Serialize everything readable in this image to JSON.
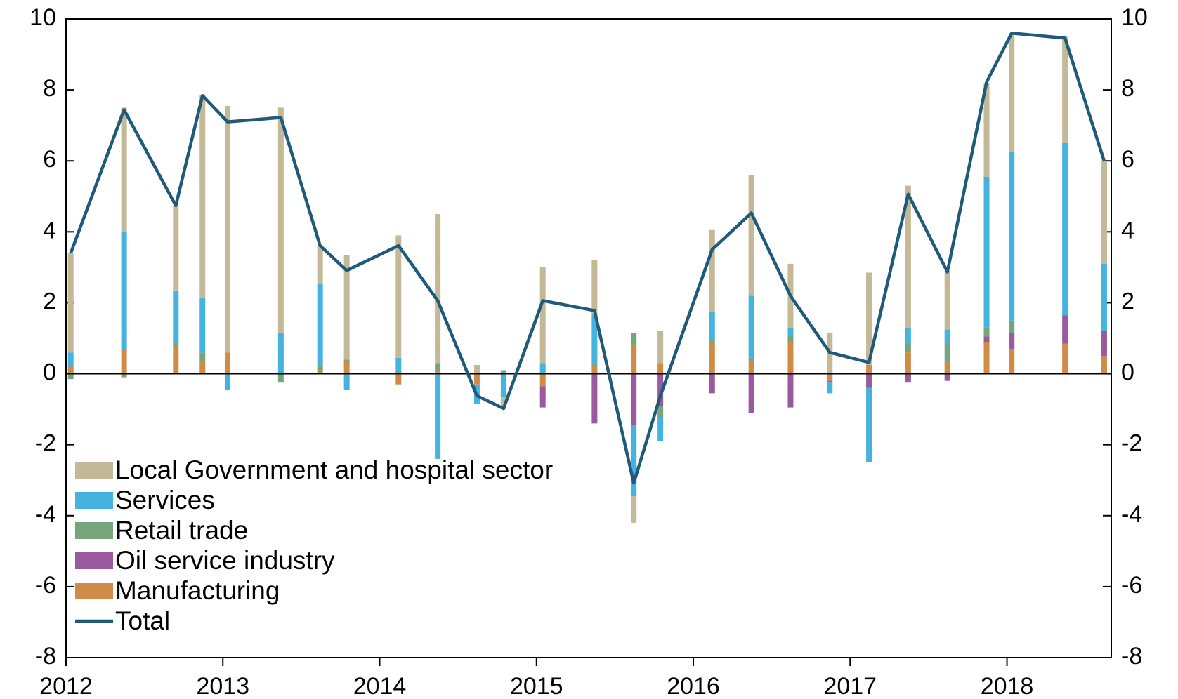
{
  "chart_data": {
    "type": "bar",
    "x": [
      2012.03,
      2012.37,
      2012.7,
      2012.87,
      2013.03,
      2013.37,
      2013.62,
      2013.79,
      2014.12,
      2014.37,
      2014.62,
      2014.79,
      2015.04,
      2015.37,
      2015.62,
      2015.79,
      2016.12,
      2016.37,
      2016.62,
      2016.87,
      2017.12,
      2017.37,
      2017.62,
      2017.87,
      2018.03,
      2018.37,
      2018.62
    ],
    "series": [
      {
        "name": "Manufacturing",
        "color": "#d08c46",
        "values": [
          0.2,
          0.7,
          0.75,
          0.35,
          0.6,
          0,
          0.1,
          0.35,
          -0.3,
          0.1,
          -0.3,
          0,
          -0.35,
          0.2,
          0.8,
          0.3,
          0.85,
          0.35,
          0.9,
          -0.2,
          0.25,
          0.6,
          0.35,
          0.9,
          0.7,
          0.85,
          0.5
        ]
      },
      {
        "name": "Oil service industry",
        "color": "#9a5a9e",
        "values": [
          0,
          0,
          0,
          0,
          0,
          0,
          0,
          0,
          0,
          0,
          0,
          0,
          -0.6,
          -1.4,
          -1.45,
          -0.9,
          -0.55,
          -1.1,
          -0.95,
          -0.05,
          -0.4,
          -0.25,
          -0.2,
          0.15,
          0.45,
          0.8,
          0.7
        ]
      },
      {
        "name": "Retail trade",
        "color": "#76a57b",
        "values": [
          -0.15,
          -0.1,
          0.15,
          0.25,
          0,
          -0.25,
          0.15,
          0.05,
          0.05,
          0.2,
          0,
          0.1,
          0,
          0.1,
          0.35,
          -0.35,
          0.1,
          0.1,
          0.2,
          0,
          0,
          0.25,
          0.5,
          0.25,
          0.35,
          0,
          0
        ]
      },
      {
        "name": "Services",
        "color": "#45b3e0",
        "values": [
          0.4,
          3.3,
          1.45,
          1.55,
          -0.45,
          1.15,
          2.3,
          -0.45,
          0.4,
          -2.4,
          -0.55,
          -0.65,
          0.3,
          1.4,
          -2.0,
          -0.65,
          0.8,
          1.75,
          0.2,
          -0.3,
          -2.1,
          0.45,
          0.4,
          4.25,
          4.75,
          4.85,
          1.9
        ]
      },
      {
        "name": "Local Government and hospital sector",
        "color": "#c4b896",
        "values": [
          2.8,
          3.5,
          2.4,
          5.7,
          6.95,
          6.35,
          1.05,
          2.95,
          3.45,
          4.2,
          0.25,
          -0.35,
          2.7,
          1.5,
          -0.75,
          0.9,
          2.3,
          3.4,
          1.8,
          1.15,
          2.6,
          4.0,
          1.65,
          2.65,
          3.35,
          3.0,
          2.9
        ]
      },
      {
        "name": "Total",
        "type": "line",
        "color": "#1f5a7a",
        "values": [
          3.4,
          7.44,
          4.74,
          7.84,
          7.1,
          7.22,
          3.61,
          2.91,
          3.61,
          2.06,
          -0.62,
          -0.98,
          2.06,
          1.78,
          -3.08,
          -0.62,
          3.5,
          4.53,
          2.19,
          0.6,
          0.32,
          5.06,
          2.87,
          8.22,
          9.6,
          9.46,
          5.99
        ]
      }
    ],
    "xlim": [
      2012,
      2018.665
    ],
    "xticks": [
      2012,
      2013,
      2014,
      2015,
      2016,
      2017,
      2018
    ],
    "ylim": [
      -8,
      10
    ],
    "yticks": [
      -8,
      -6,
      -4,
      -2,
      0,
      2,
      4,
      6,
      8,
      10
    ],
    "y2lim": [
      -8,
      10
    ],
    "y2ticks": [
      -8,
      -6,
      -4,
      -2,
      0,
      2,
      4,
      6,
      8,
      10
    ],
    "legend": "lower left"
  }
}
